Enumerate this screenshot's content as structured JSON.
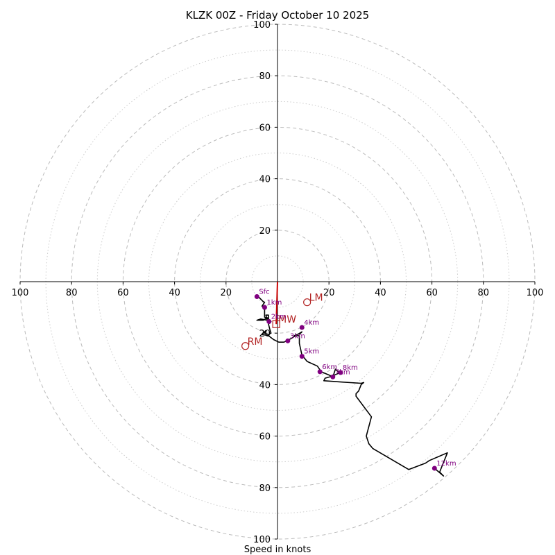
{
  "chart_data": {
    "type": "hodograph",
    "title": "KLZK 00Z - Friday October 10 2025",
    "xlabel": "Speed in knots",
    "units": "knots",
    "range": [
      -100,
      100
    ],
    "rings_major": [
      20,
      40,
      60,
      80,
      100
    ],
    "rings_minor": [
      10,
      30,
      50,
      70,
      90
    ],
    "x_tick_labels": [
      "100",
      "80",
      "60",
      "40",
      "20",
      "20",
      "40",
      "60",
      "80",
      "100"
    ],
    "y_tick_labels": [
      "100",
      "80",
      "60",
      "40",
      "20",
      "20",
      "40",
      "60",
      "80",
      "100"
    ],
    "colors": {
      "trace": "#000000",
      "height": "#800080",
      "storm": "#b22222",
      "grid": "#bbbbbb",
      "shear": "#cc0000"
    },
    "trace": [
      [
        -7.5,
        -5.8
      ],
      [
        -5.5,
        -7.8
      ],
      [
        -5.0,
        -8
      ],
      [
        -6.0,
        -9.5
      ],
      [
        -5.0,
        -11
      ],
      [
        -5.0,
        -13.8
      ],
      [
        -3.5,
        -14.5
      ],
      [
        -3.5,
        -13
      ],
      [
        -4.5,
        -13
      ],
      [
        -4.0,
        -15
      ],
      [
        -6.5,
        -14.5
      ],
      [
        -8.0,
        -15
      ],
      [
        -5.5,
        -15
      ],
      [
        -4.0,
        -14
      ],
      [
        -2.5,
        -15.5
      ],
      [
        -3.5,
        -16.5
      ],
      [
        -3.0,
        -18.5
      ],
      [
        -2.5,
        -20
      ],
      [
        -3.5,
        -20.5
      ],
      [
        -5.0,
        -20
      ],
      [
        -4.5,
        -19
      ],
      [
        -6.0,
        -20.5
      ],
      [
        -3.5,
        -21
      ],
      [
        -1.5,
        -22.5
      ],
      [
        0.5,
        -23.5
      ],
      [
        2.5,
        -23.5
      ],
      [
        4.0,
        -22.8
      ],
      [
        5.5,
        -22
      ],
      [
        7.0,
        -21
      ],
      [
        9.5,
        -19.5
      ],
      [
        9.0,
        -20
      ],
      [
        6.5,
        -21
      ],
      [
        8.5,
        -21
      ],
      [
        8.5,
        -24
      ],
      [
        9.5,
        -28.5
      ],
      [
        11.5,
        -31
      ],
      [
        15.5,
        -32.8
      ],
      [
        17.0,
        -35
      ],
      [
        20.5,
        -36.5
      ],
      [
        21.5,
        -37
      ],
      [
        22.5,
        -34
      ],
      [
        24.0,
        -35.5
      ],
      [
        21.0,
        -36.8
      ],
      [
        18.5,
        -37.5
      ],
      [
        18.0,
        -38.5
      ],
      [
        25.0,
        -39
      ],
      [
        32.5,
        -39.5
      ],
      [
        33.5,
        -39.2
      ],
      [
        32.5,
        -40
      ],
      [
        31.5,
        -42.5
      ],
      [
        30.5,
        -43.5
      ],
      [
        30.5,
        -44.5
      ],
      [
        36.5,
        -52.5
      ],
      [
        34.5,
        -60
      ],
      [
        35.5,
        -63
      ],
      [
        37.0,
        -64.8
      ],
      [
        51.0,
        -73
      ],
      [
        57.5,
        -70.5
      ],
      [
        59.0,
        -69.5
      ],
      [
        66.0,
        -66.5
      ],
      [
        63.0,
        -74
      ],
      [
        64.5,
        -75.5
      ],
      [
        61.0,
        -72.5
      ]
    ],
    "heights": [
      {
        "label": "Sfc",
        "u": -8,
        "v": -5.8
      },
      {
        "label": "1km",
        "u": -5,
        "v": -10
      },
      {
        "label": "2km",
        "u": -3.3,
        "v": -15.5
      },
      {
        "label": "3km",
        "u": 4,
        "v": -23
      },
      {
        "label": "4km",
        "u": 9.5,
        "v": -17.8
      },
      {
        "label": "5km",
        "u": 9.5,
        "v": -29
      },
      {
        "label": "6km",
        "u": 16.5,
        "v": -35
      },
      {
        "label": "7km",
        "u": 21.5,
        "v": -37
      },
      {
        "label": "8km",
        "u": 24.5,
        "v": -35.3
      },
      {
        "label": "12km",
        "u": 61,
        "v": -72.5
      }
    ],
    "storm_motion": [
      {
        "label": "LM",
        "u": 11.5,
        "v": -8,
        "marker": "circle"
      },
      {
        "label": "MW",
        "u": -0.5,
        "v": -16.5,
        "marker": "square"
      },
      {
        "label": "RM",
        "u": -12.5,
        "v": -25,
        "marker": "circle"
      }
    ],
    "shear_vector": {
      "from": [
        -0.5,
        -16.5
      ],
      "to": [
        0,
        0
      ]
    }
  }
}
